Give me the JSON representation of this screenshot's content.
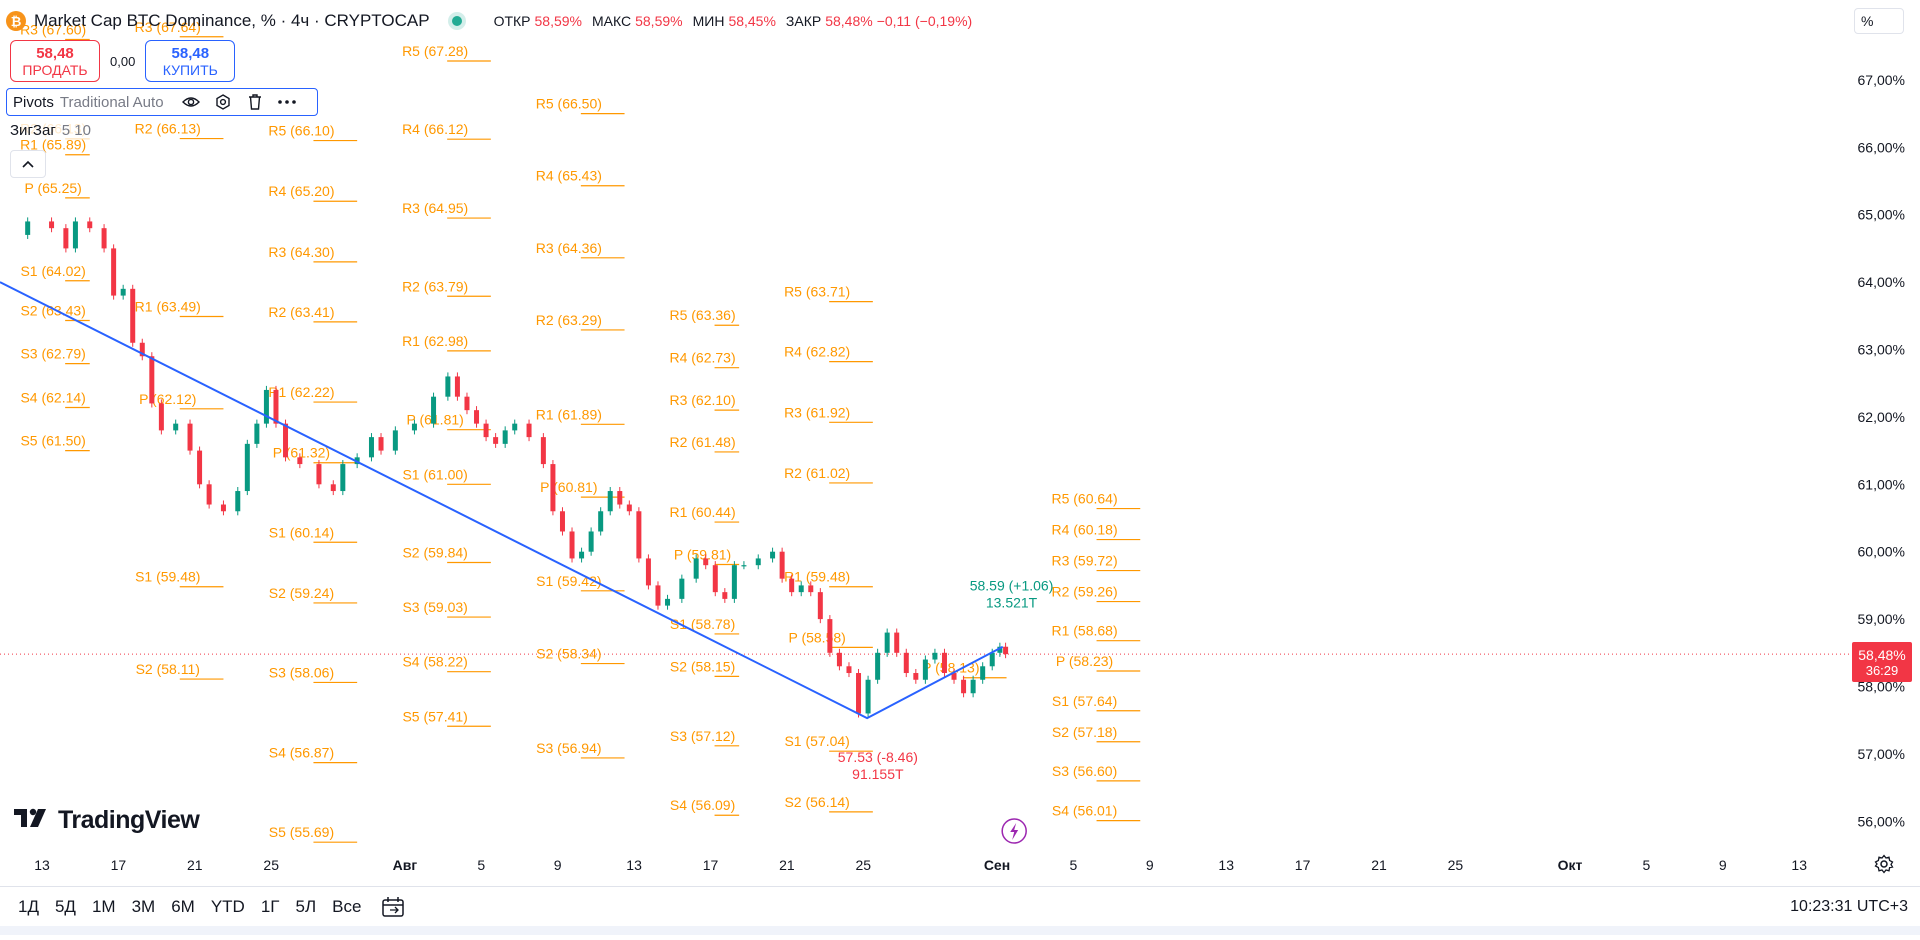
{
  "header": {
    "title": "Market Cap BTC Dominance, % · 4ч · CRYPTOCAP",
    "logo_char": "₿",
    "ohlc": [
      {
        "label": "ОТКР",
        "value": "58,59%"
      },
      {
        "label": "МАКС",
        "value": "58,59%"
      },
      {
        "label": "МИН",
        "value": "58,45%"
      },
      {
        "label": "ЗАКР",
        "value": "58,48%"
      },
      {
        "label": "",
        "value": "−0,11 (−0,19%)"
      }
    ]
  },
  "trade": {
    "sell_price": "58,48",
    "sell_label": "ПРОДАТЬ",
    "spread": "0,00",
    "buy_price": "58,48",
    "buy_label": "КУПИТЬ"
  },
  "indicators": {
    "pivots_name": "Pivots",
    "pivots_args": "Traditional Auto",
    "zigzag_name": "ЗигЗаг",
    "zigzag_args": "5 10"
  },
  "icons": {
    "eye": "eye-icon",
    "settings": "settings-icon",
    "trash": "trash-icon",
    "more": "more-icon",
    "collapse": "chevron-up-icon",
    "calendar": "calendar-range-icon",
    "gear": "gear-icon",
    "lightning": "lightning-icon"
  },
  "scale_mode": "%",
  "last_price": {
    "value": "58,48%",
    "countdown": "36:29",
    "y": 58.48
  },
  "periods": [
    "1Д",
    "5Д",
    "1М",
    "3М",
    "6М",
    "YTD",
    "1Г",
    "5Л",
    "Все"
  ],
  "clock": "10:23:31 UTC+3",
  "brand": "TradingView",
  "colors": {
    "up": "#089981",
    "down": "#f23645",
    "pivot": "#ff9800",
    "zigzag": "#2962ff",
    "accent": "#2962ff"
  },
  "chart_data": {
    "type": "candlestick",
    "title": "Market Cap BTC Dominance, %",
    "y_axis": {
      "range": [
        55.7,
        67.6
      ],
      "ticks": [
        "56,00%",
        "57,00%",
        "58,00%",
        "59,00%",
        "60,00%",
        "61,00%",
        "62,00%",
        "63,00%",
        "64,00%",
        "65,00%",
        "66,00%",
        "67,00%"
      ],
      "tick_values": [
        56,
        57,
        58,
        59,
        60,
        61,
        62,
        63,
        64,
        65,
        66,
        67
      ]
    },
    "x_axis": {
      "range": [
        0,
        122
      ],
      "ticks": [
        {
          "label": "13",
          "d": 0
        },
        {
          "label": "17",
          "d": 4
        },
        {
          "label": "21",
          "d": 8
        },
        {
          "label": "25",
          "d": 12
        },
        {
          "label": "Авг",
          "d": 19,
          "bold": true
        },
        {
          "label": "5",
          "d": 23
        },
        {
          "label": "9",
          "d": 27
        },
        {
          "label": "13",
          "d": 31
        },
        {
          "label": "17",
          "d": 35
        },
        {
          "label": "21",
          "d": 39
        },
        {
          "label": "25",
          "d": 43
        },
        {
          "label": "Сен",
          "d": 50,
          "bold": true
        },
        {
          "label": "5",
          "d": 54
        },
        {
          "label": "9",
          "d": 58
        },
        {
          "label": "13",
          "d": 62
        },
        {
          "label": "17",
          "d": 66
        },
        {
          "label": "21",
          "d": 70
        },
        {
          "label": "25",
          "d": 74
        },
        {
          "label": "Окт",
          "d": 80,
          "bold": true
        },
        {
          "label": "5",
          "d": 84
        },
        {
          "label": "9",
          "d": 88
        },
        {
          "label": "13",
          "d": 92
        }
      ]
    },
    "price_path": [
      [
        -1.5,
        64.7
      ],
      [
        0,
        64.9
      ],
      [
        1,
        64.8
      ],
      [
        1.5,
        64.5
      ],
      [
        2,
        64.9
      ],
      [
        3,
        64.8
      ],
      [
        3.5,
        64.5
      ],
      [
        4,
        63.8
      ],
      [
        4.5,
        63.9
      ],
      [
        5,
        63.1
      ],
      [
        5.5,
        62.9
      ],
      [
        6,
        62.2
      ],
      [
        6.5,
        61.8
      ],
      [
        7.5,
        61.9
      ],
      [
        8,
        61.5
      ],
      [
        8.5,
        61.0
      ],
      [
        9,
        60.7
      ],
      [
        10,
        60.6
      ],
      [
        10.5,
        60.9
      ],
      [
        11,
        61.6
      ],
      [
        11.5,
        61.9
      ],
      [
        12,
        62.4
      ],
      [
        12.5,
        61.9
      ],
      [
        13,
        61.4
      ],
      [
        14,
        61.3
      ],
      [
        15,
        61.0
      ],
      [
        15.5,
        60.9
      ],
      [
        16,
        61.3
      ],
      [
        17,
        61.4
      ],
      [
        17.5,
        61.7
      ],
      [
        18,
        61.5
      ],
      [
        19,
        61.8
      ],
      [
        20,
        61.9
      ],
      [
        21,
        62.3
      ],
      [
        21.5,
        62.6
      ],
      [
        22,
        62.3
      ],
      [
        22.5,
        62.1
      ],
      [
        23,
        61.9
      ],
      [
        23.5,
        61.7
      ],
      [
        24,
        61.6
      ],
      [
        24.5,
        61.8
      ],
      [
        25,
        61.9
      ],
      [
        26,
        61.7
      ],
      [
        26.5,
        61.3
      ],
      [
        27,
        60.6
      ],
      [
        27.5,
        60.3
      ],
      [
        28,
        59.9
      ],
      [
        28.5,
        60.0
      ],
      [
        29,
        60.3
      ],
      [
        29.5,
        60.6
      ],
      [
        30,
        60.9
      ],
      [
        30.5,
        60.7
      ],
      [
        31,
        60.6
      ],
      [
        31.5,
        59.9
      ],
      [
        32,
        59.5
      ],
      [
        32.5,
        59.2
      ],
      [
        33,
        59.3
      ],
      [
        34,
        59.6
      ],
      [
        34.5,
        59.9
      ],
      [
        35,
        59.8
      ],
      [
        35.5,
        59.4
      ],
      [
        36,
        59.3
      ],
      [
        36.5,
        59.8
      ],
      [
        37,
        59.8
      ],
      [
        38,
        59.9
      ],
      [
        38.5,
        60.0
      ],
      [
        39,
        59.6
      ],
      [
        39.5,
        59.4
      ],
      [
        40,
        59.5
      ],
      [
        40.5,
        59.4
      ],
      [
        41,
        59.0
      ],
      [
        41.5,
        58.5
      ],
      [
        42,
        58.3
      ],
      [
        42.5,
        58.2
      ],
      [
        43,
        57.6
      ],
      [
        43.5,
        58.1
      ],
      [
        44,
        58.5
      ],
      [
        44.5,
        58.8
      ],
      [
        45,
        58.5
      ],
      [
        45.5,
        58.2
      ],
      [
        46,
        58.1
      ],
      [
        46.5,
        58.4
      ],
      [
        47,
        58.5
      ],
      [
        47.5,
        58.2
      ],
      [
        48,
        58.1
      ],
      [
        48.5,
        57.9
      ],
      [
        49,
        58.1
      ],
      [
        49.5,
        58.3
      ],
      [
        50,
        58.5
      ],
      [
        50.3,
        58.59
      ],
      [
        50.6,
        58.48
      ]
    ],
    "zigzag": [
      [
        -2.2,
        64.0
      ],
      [
        43.2,
        57.53
      ],
      [
        50.3,
        58.59
      ]
    ],
    "zigzag_labels": [
      {
        "text": "58.59 (+1.06)",
        "sub": "13.521T",
        "d": 50.5,
        "y": 58.59,
        "color": "up"
      },
      {
        "text": "57.53 (-8.46)",
        "sub": "91.155T",
        "d": 43.5,
        "y": 57.53,
        "color": "down"
      }
    ],
    "pivot_periods": [
      {
        "start": -3.5,
        "end": 2.5,
        "levels": [
          [
            "R3",
            "67.60"
          ],
          [
            "R2",
            "66.13"
          ],
          [
            "R1",
            "65.89"
          ],
          [
            "P",
            "65.25"
          ],
          [
            "S1",
            "64.02"
          ],
          [
            "S2",
            "63.43"
          ],
          [
            "S3",
            "62.79"
          ],
          [
            "S4",
            "62.14"
          ],
          [
            "S5",
            "61.50"
          ]
        ]
      },
      {
        "start": 2.5,
        "end": 9.5,
        "levels": [
          [
            "R3",
            "67.64"
          ],
          [
            "R2",
            "66.13"
          ],
          [
            "R1",
            "63.49"
          ],
          [
            "P",
            "62.12"
          ],
          [
            "S1",
            "59.48"
          ],
          [
            "S2",
            "58.11"
          ]
        ]
      },
      {
        "start": 9.5,
        "end": 16.5,
        "levels": [
          [
            "R5",
            "66.10"
          ],
          [
            "R4",
            "65.20"
          ],
          [
            "R3",
            "64.30"
          ],
          [
            "R2",
            "63.41"
          ],
          [
            "R1",
            "62.22"
          ],
          [
            "P",
            "61.32"
          ],
          [
            "S1",
            "60.14"
          ],
          [
            "S2",
            "59.24"
          ],
          [
            "S3",
            "58.06"
          ],
          [
            "S4",
            "56.87"
          ],
          [
            "S5",
            "55.69"
          ]
        ]
      },
      {
        "start": 16.5,
        "end": 23.5,
        "levels": [
          [
            "R5",
            "67.28"
          ],
          [
            "R4",
            "66.12"
          ],
          [
            "R3",
            "64.95"
          ],
          [
            "R2",
            "63.79"
          ],
          [
            "R1",
            "62.98"
          ],
          [
            "P",
            "61.81"
          ],
          [
            "S1",
            "61.00"
          ],
          [
            "S2",
            "59.84"
          ],
          [
            "S3",
            "59.03"
          ],
          [
            "S4",
            "58.22"
          ],
          [
            "S5",
            "57.41"
          ]
        ]
      },
      {
        "start": 23.5,
        "end": 30.5,
        "levels": [
          [
            "R5",
            "66.50"
          ],
          [
            "R4",
            "65.43"
          ],
          [
            "R3",
            "64.36"
          ],
          [
            "R2",
            "63.29"
          ],
          [
            "R1",
            "61.89"
          ],
          [
            "P",
            "60.81"
          ],
          [
            "S1",
            "59.42"
          ],
          [
            "S2",
            "58.34"
          ],
          [
            "S3",
            "56.94"
          ]
        ]
      },
      {
        "start": 30.5,
        "end": 36.5,
        "levels": [
          [
            "R5",
            "63.36"
          ],
          [
            "R4",
            "62.73"
          ],
          [
            "R3",
            "62.10"
          ],
          [
            "R2",
            "61.48"
          ],
          [
            "R1",
            "60.44"
          ],
          [
            "P",
            "59.81"
          ],
          [
            "S1",
            "58.78"
          ],
          [
            "S2",
            "58.15"
          ],
          [
            "S3",
            "57.12"
          ],
          [
            "S4",
            "56.09"
          ]
        ]
      },
      {
        "start": 36.5,
        "end": 43.5,
        "levels": [
          [
            "R5",
            "63.71"
          ],
          [
            "R4",
            "62.82"
          ],
          [
            "R3",
            "61.92"
          ],
          [
            "R2",
            "61.02"
          ],
          [
            "R1",
            "59.48"
          ],
          [
            "P",
            "58.58"
          ],
          [
            "S1",
            "57.04"
          ],
          [
            "S2",
            "56.14"
          ]
        ]
      },
      {
        "start": 43.5,
        "end": 50.5,
        "levels": [
          [
            "P",
            "58.13"
          ]
        ]
      },
      {
        "start": 50.5,
        "end": 57.5,
        "levels": [
          [
            "R5",
            "60.64"
          ],
          [
            "R4",
            "60.18"
          ],
          [
            "R3",
            "59.72"
          ],
          [
            "R2",
            "59.26"
          ],
          [
            "R1",
            "58.68"
          ],
          [
            "P",
            "58.23"
          ],
          [
            "S1",
            "57.64"
          ],
          [
            "S2",
            "57.18"
          ],
          [
            "S3",
            "56.60"
          ],
          [
            "S4",
            "56.01"
          ]
        ]
      }
    ]
  }
}
